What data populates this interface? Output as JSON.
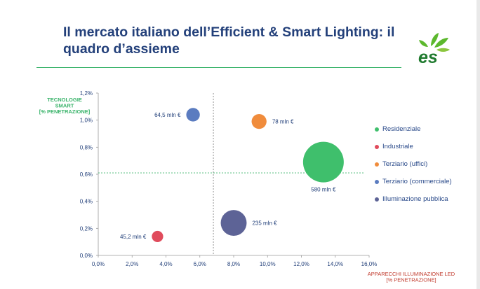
{
  "title": "Il mercato italiano dell’Efficient & Smart Lighting: il quadro d’assieme",
  "logo": {
    "text": "es",
    "colors": {
      "leaf": "#5cb82d",
      "text": "#1f7a2e"
    }
  },
  "colors": {
    "title": "#23407a",
    "rule": "#39b36a",
    "axis": "#9a9a9a",
    "ref_line": "#39b36a",
    "tick": "#23407a",
    "x_title": "#c0392b"
  },
  "chart_data": {
    "type": "scatter",
    "subtype": "bubble",
    "xlabel": "APPARECCHI ILLUMINAZIONE LED [% PENETRAZIONE]",
    "xlabel_lines": [
      "APPARECCHI ILLUMINAZIONE LED",
      "[% PENETRAZIONE]"
    ],
    "ylabel": "TECNOLOGIE SMART [% PENETRAZIONE]",
    "ylabel_lines": [
      "TECNOLOGIE",
      "SMART",
      "[% PENETRAZIONE]"
    ],
    "xlim": [
      0,
      16
    ],
    "ylim": [
      0,
      1.2
    ],
    "x_ticks": [
      "0,0%",
      "2,0%",
      "4,0%",
      "6,0%",
      "8,0%",
      "10,0%",
      "12,0%",
      "14,0%",
      "16,0%"
    ],
    "y_ticks": [
      "0,0%",
      "0,2%",
      "0,4%",
      "0,6%",
      "0,8%",
      "1,0%",
      "1,2%"
    ],
    "reference_lines": {
      "x": 6.8,
      "y": 0.61
    },
    "legend_position": "right",
    "series": [
      {
        "name": "Residenziale",
        "color": "#3fbf6c",
        "x": 13.3,
        "y": 0.69,
        "size": 580,
        "label": "580 mln €",
        "label_pos": "below"
      },
      {
        "name": "Industriale",
        "color": "#e04b5c",
        "x": 3.5,
        "y": 0.14,
        "size": 45.2,
        "label": "45,2 mln €",
        "label_pos": "left"
      },
      {
        "name": "Terziario (uffici)",
        "color": "#f08c3c",
        "x": 9.5,
        "y": 0.99,
        "size": 78,
        "label": "78 mln €",
        "label_pos": "right"
      },
      {
        "name": "Terziario (commerciale)",
        "color": "#5b7cc0",
        "x": 5.6,
        "y": 1.04,
        "size": 64.5,
        "label": "64,5 mln €",
        "label_pos": "left"
      },
      {
        "name": "Illuminazione pubblica",
        "color": "#5d6396",
        "x": 8.0,
        "y": 0.24,
        "size": 235,
        "label": "235 mln €",
        "label_pos": "right"
      }
    ]
  }
}
